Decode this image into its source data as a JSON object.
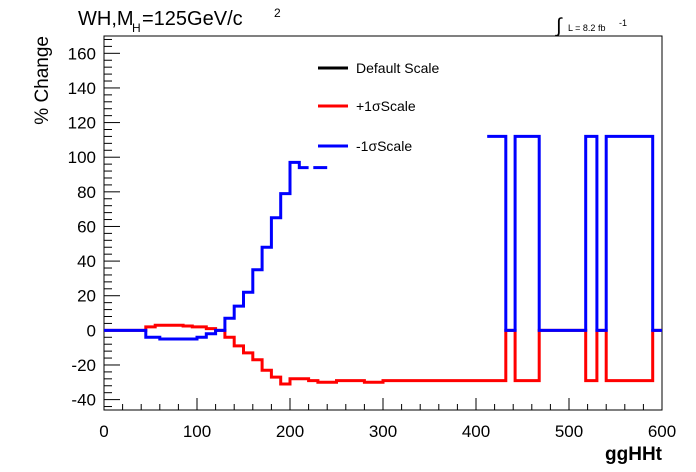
{
  "chart_data": {
    "type": "line",
    "title_main": "WH,M",
    "title_sub": "H",
    "title_rest": "=125GeV/c",
    "title_sup": "2",
    "lumi_label": "L = 8.2 fb",
    "lumi_sup": "-1",
    "xlabel": "ggHHt",
    "ylabel": "% Change",
    "xlim": [
      0,
      600
    ],
    "ylim": [
      -46,
      170
    ],
    "xticks": [
      0,
      100,
      200,
      300,
      400,
      500,
      600
    ],
    "yticks": [
      -40,
      -20,
      0,
      20,
      40,
      60,
      80,
      100,
      120,
      140,
      160
    ],
    "legend": [
      {
        "label": "Default Scale",
        "color": "#000000"
      },
      {
        "label": "+1σScale",
        "color": "#ff0000"
      },
      {
        "label": "-1σScale",
        "color": "#0000ff"
      }
    ],
    "series": [
      {
        "name": "+1σScale",
        "color": "#ff0000",
        "segments": [
          [
            [
              0,
              0
            ],
            [
              45,
              0
            ],
            [
              45,
              2
            ],
            [
              55,
              2
            ],
            [
              55,
              3
            ],
            [
              85,
              3
            ],
            [
              85,
              2.5
            ],
            [
              95,
              2.5
            ],
            [
              95,
              2
            ],
            [
              110,
              2
            ],
            [
              110,
              1
            ],
            [
              120,
              1
            ],
            [
              120,
              0
            ],
            [
              130,
              0
            ],
            [
              130,
              -4
            ],
            [
              140,
              -4
            ],
            [
              140,
              -9
            ],
            [
              150,
              -9
            ],
            [
              150,
              -13
            ],
            [
              160,
              -13
            ],
            [
              160,
              -17
            ],
            [
              170,
              -17
            ],
            [
              170,
              -23
            ],
            [
              180,
              -23
            ],
            [
              180,
              -27
            ],
            [
              190,
              -27
            ],
            [
              190,
              -31
            ],
            [
              200,
              -31
            ],
            [
              200,
              -28
            ],
            [
              220,
              -28
            ],
            [
              220,
              -29
            ],
            [
              230,
              -29
            ],
            [
              230,
              -30
            ],
            [
              250,
              -30
            ],
            [
              250,
              -29
            ],
            [
              280,
              -29
            ],
            [
              280,
              -30
            ],
            [
              300,
              -30
            ],
            [
              300,
              -29
            ],
            [
              432,
              -29
            ],
            [
              432,
              0
            ],
            [
              442,
              0
            ],
            [
              442,
              -29
            ],
            [
              468,
              -29
            ],
            [
              468,
              0
            ],
            [
              518,
              0
            ],
            [
              518,
              -29
            ],
            [
              530,
              -29
            ],
            [
              530,
              0
            ],
            [
              540,
              0
            ],
            [
              540,
              -29
            ],
            [
              590,
              -29
            ],
            [
              590,
              0
            ],
            [
              600,
              0
            ]
          ]
        ]
      },
      {
        "name": "-1σScale",
        "color": "#0000ff",
        "segments": [
          [
            [
              0,
              0
            ],
            [
              45,
              0
            ],
            [
              45,
              -4
            ],
            [
              60,
              -4
            ],
            [
              60,
              -5
            ],
            [
              100,
              -5
            ],
            [
              100,
              -4
            ],
            [
              110,
              -4
            ],
            [
              110,
              -2
            ],
            [
              120,
              -2
            ],
            [
              120,
              0
            ],
            [
              130,
              0
            ],
            [
              130,
              7
            ],
            [
              140,
              7
            ],
            [
              140,
              14
            ],
            [
              150,
              14
            ],
            [
              150,
              22
            ],
            [
              160,
              22
            ],
            [
              160,
              35
            ],
            [
              170,
              35
            ],
            [
              170,
              48
            ],
            [
              180,
              48
            ],
            [
              180,
              65
            ],
            [
              190,
              65
            ],
            [
              190,
              79
            ],
            [
              200,
              79
            ],
            [
              200,
              97
            ],
            [
              210,
              97
            ],
            [
              210,
              94
            ],
            [
              220,
              94
            ]
          ],
          [
            [
              225,
              94
            ],
            [
              240,
              94
            ]
          ],
          [
            [
              412,
              112
            ],
            [
              432,
              112
            ],
            [
              432,
              0
            ],
            [
              442,
              0
            ],
            [
              442,
              112
            ],
            [
              468,
              112
            ],
            [
              468,
              0
            ],
            [
              518,
              0
            ],
            [
              518,
              112
            ],
            [
              530,
              112
            ],
            [
              530,
              0
            ],
            [
              540,
              0
            ],
            [
              540,
              112
            ],
            [
              590,
              112
            ],
            [
              590,
              0
            ],
            [
              600,
              0
            ]
          ]
        ]
      }
    ]
  }
}
